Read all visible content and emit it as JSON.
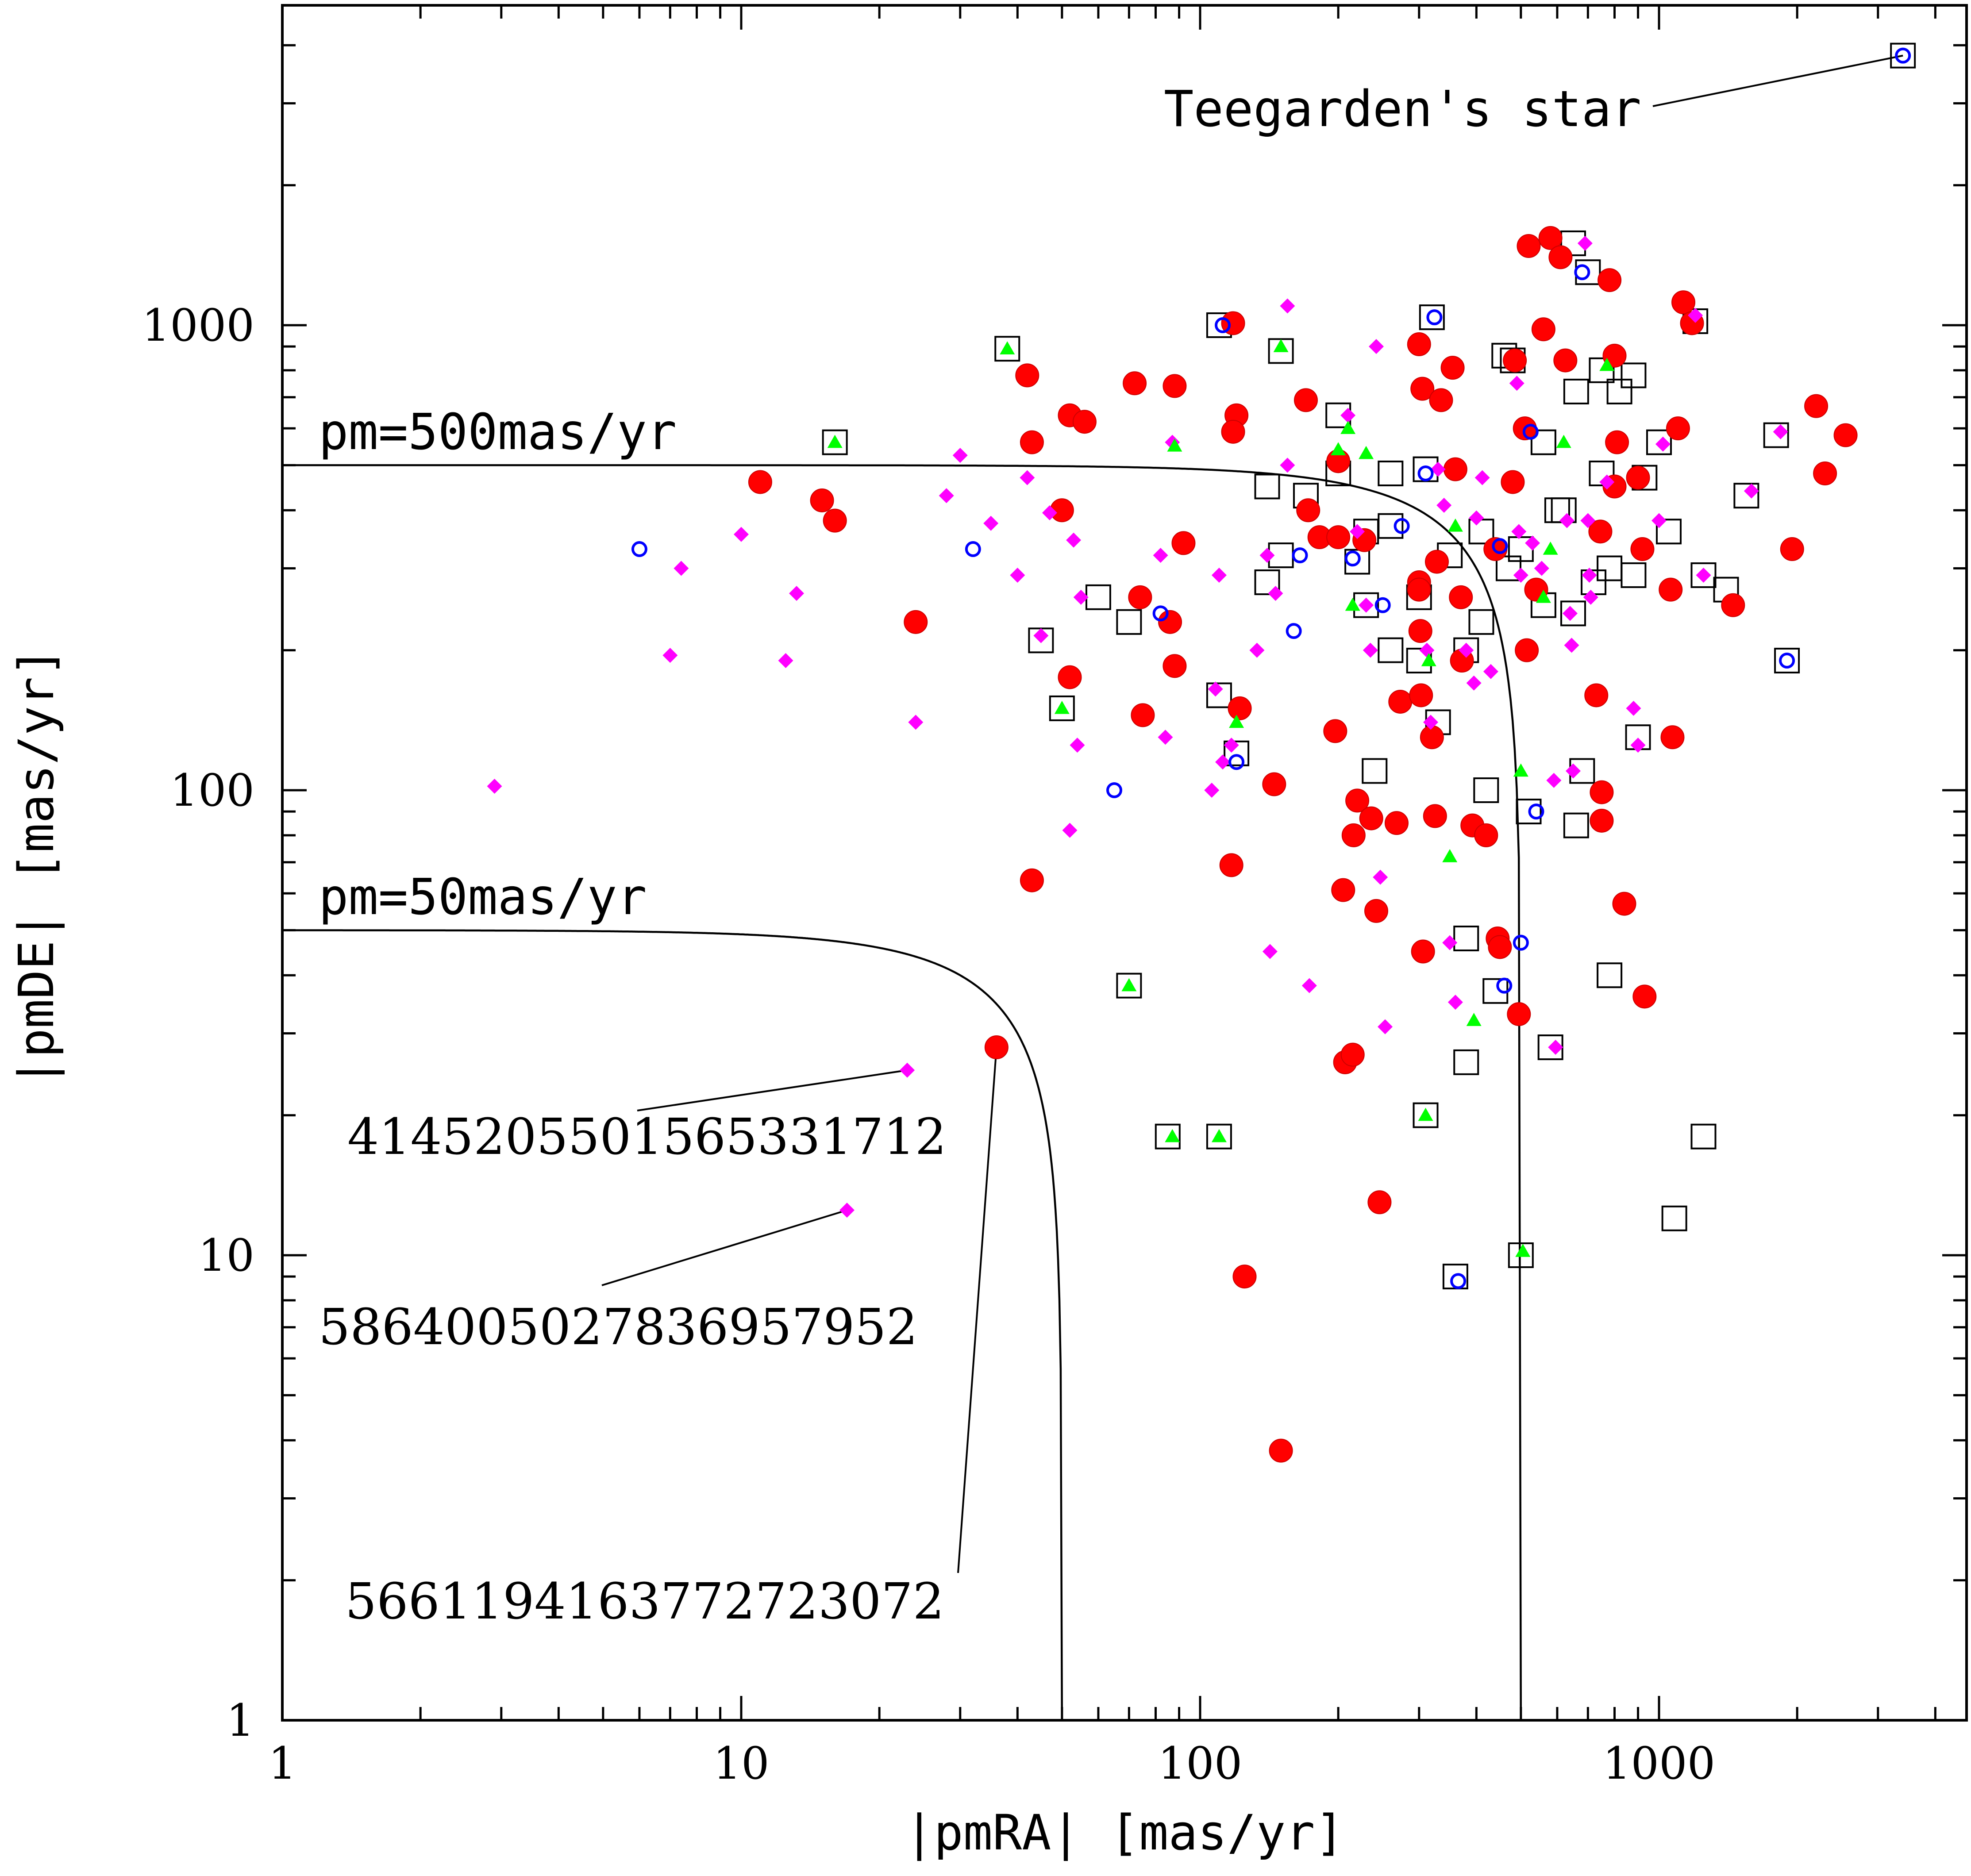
{
  "chart_data": {
    "type": "scatter",
    "title": "",
    "xlabel": "|pmRA| [mas/yr]",
    "ylabel": "|pmDE| [mas/yr]",
    "xscale": "log",
    "yscale": "log",
    "xlim": [
      1,
      4500
    ],
    "ylim": [
      1,
      4500
    ],
    "x_ticks": [
      {
        "value": 1,
        "label": "1"
      },
      {
        "value": 10,
        "label": "10"
      },
      {
        "value": 100,
        "label": "100"
      },
      {
        "value": 1000,
        "label": "1000"
      }
    ],
    "y_ticks": [
      {
        "value": 1,
        "label": "1"
      },
      {
        "value": 10,
        "label": "10"
      },
      {
        "value": 100,
        "label": "100"
      },
      {
        "value": 1000,
        "label": "1000"
      }
    ],
    "curves": [
      {
        "name": "pm500",
        "label": "pm=500mas/yr",
        "pm": 500
      },
      {
        "name": "pm50",
        "label": "pm=50mas/yr",
        "pm": 50
      }
    ],
    "annotations": [
      {
        "name": "teegarden",
        "text": "Teegarden's star",
        "target": [
          3400,
          3800
        ]
      },
      {
        "name": "gaia-4145",
        "text": "4145205501565331712",
        "target": [
          23,
          25
        ]
      },
      {
        "name": "gaia-5864",
        "text": "5864005027836957952",
        "target": [
          17,
          12.5
        ]
      },
      {
        "name": "gaia-5661",
        "text": "5661194163772723072",
        "target": [
          36,
          28
        ]
      }
    ],
    "series": [
      {
        "name": "squares",
        "marker": "open-square",
        "color": "#000000",
        "points": [
          [
            3400,
            3800
          ],
          [
            38,
            890
          ],
          [
            110,
            1000
          ],
          [
            320,
            1040
          ],
          [
            1200,
            1020
          ],
          [
            150,
            880
          ],
          [
            460,
            860
          ],
          [
            750,
            800
          ],
          [
            880,
            780
          ],
          [
            1550,
            430
          ],
          [
            1050,
            360
          ],
          [
            410,
            360
          ],
          [
            230,
            360
          ],
          [
            310,
            490
          ],
          [
            620,
            400
          ],
          [
            880,
            290
          ],
          [
            650,
            240
          ],
          [
            60,
            260
          ],
          [
            230,
            250
          ],
          [
            120,
            120
          ],
          [
            240,
            110
          ],
          [
            300,
            190
          ],
          [
            380,
            200
          ],
          [
            680,
            110
          ],
          [
            420,
            100
          ],
          [
            520,
            90
          ],
          [
            660,
            84
          ],
          [
            330,
            140
          ],
          [
            900,
            130
          ],
          [
            1250,
            18
          ],
          [
            380,
            26
          ],
          [
            1080,
            12
          ],
          [
            360,
            9
          ],
          [
            500,
            10
          ],
          [
            310,
            20
          ],
          [
            70,
            38
          ],
          [
            110,
            18
          ],
          [
            85,
            18
          ],
          [
            50,
            150
          ],
          [
            16,
            560
          ],
          [
            260,
            480
          ],
          [
            560,
            560
          ],
          [
            820,
            720
          ],
          [
            1800,
            580
          ],
          [
            200,
            640
          ],
          [
            110,
            160
          ],
          [
            170,
            430
          ],
          [
            650,
            1500
          ],
          [
            200,
            480
          ],
          [
            560,
            250
          ],
          [
            470,
            300
          ],
          [
            600,
            400
          ],
          [
            140,
            450
          ],
          [
            350,
            320
          ],
          [
            780,
            300
          ],
          [
            930,
            470
          ],
          [
            1000,
            560
          ],
          [
            260,
            370
          ],
          [
            700,
            1300
          ],
          [
            480,
            840
          ],
          [
            660,
            720
          ],
          [
            750,
            480
          ],
          [
            1250,
            290
          ],
          [
            1900,
            190
          ],
          [
            780,
            40
          ],
          [
            580,
            28
          ],
          [
            720,
            280
          ],
          [
            150,
            320
          ],
          [
            380,
            48
          ],
          [
            440,
            37
          ],
          [
            220,
            310
          ],
          [
            45,
            210
          ],
          [
            70,
            230
          ],
          [
            300,
            260
          ],
          [
            410,
            230
          ],
          [
            1400,
            270
          ],
          [
            140,
            280
          ],
          [
            260,
            200
          ],
          [
            500,
            330
          ]
        ]
      },
      {
        "name": "filled-red",
        "marker": "filled-circle",
        "color": "#ff0000",
        "points": [
          [
            11,
            460
          ],
          [
            15,
            420
          ],
          [
            16,
            380
          ],
          [
            24,
            230
          ],
          [
            36,
            28
          ],
          [
            42,
            780
          ],
          [
            43,
            560
          ],
          [
            43,
            64
          ],
          [
            52,
            640
          ],
          [
            56,
            620
          ],
          [
            50,
            400
          ],
          [
            52,
            175
          ],
          [
            72,
            750
          ],
          [
            74,
            260
          ],
          [
            75,
            145
          ],
          [
            88,
            740
          ],
          [
            86,
            230
          ],
          [
            88,
            185
          ],
          [
            92,
            340
          ],
          [
            118,
            1010
          ],
          [
            120,
            640
          ],
          [
            118,
            590
          ],
          [
            117,
            69
          ],
          [
            122,
            150
          ],
          [
            125,
            9
          ],
          [
            145,
            103
          ],
          [
            150,
            3.8
          ],
          [
            170,
            690
          ],
          [
            172,
            400
          ],
          [
            182,
            350
          ],
          [
            197,
            134
          ],
          [
            200,
            350
          ],
          [
            200,
            510
          ],
          [
            205,
            61
          ],
          [
            207,
            26
          ],
          [
            215,
            27
          ],
          [
            216,
            80
          ],
          [
            220,
            95
          ],
          [
            228,
            345
          ],
          [
            236,
            87
          ],
          [
            242,
            55
          ],
          [
            246,
            13
          ],
          [
            268,
            85
          ],
          [
            273,
            155
          ],
          [
            300,
            910
          ],
          [
            305,
            730
          ],
          [
            300,
            280
          ],
          [
            300,
            270
          ],
          [
            302,
            220
          ],
          [
            303,
            160
          ],
          [
            306,
            45
          ],
          [
            320,
            130
          ],
          [
            325,
            88
          ],
          [
            328,
            310
          ],
          [
            335,
            690
          ],
          [
            355,
            810
          ],
          [
            360,
            490
          ],
          [
            370,
            260
          ],
          [
            372,
            190
          ],
          [
            392,
            84
          ],
          [
            420,
            80
          ],
          [
            440,
            330
          ],
          [
            445,
            48
          ],
          [
            450,
            46
          ],
          [
            480,
            460
          ],
          [
            485,
            840
          ],
          [
            495,
            33
          ],
          [
            510,
            600
          ],
          [
            515,
            200
          ],
          [
            520,
            1480
          ],
          [
            540,
            270
          ],
          [
            560,
            980
          ],
          [
            580,
            1540
          ],
          [
            610,
            1400
          ],
          [
            625,
            840
          ],
          [
            730,
            160
          ],
          [
            745,
            360
          ],
          [
            750,
            99
          ],
          [
            750,
            86
          ],
          [
            780,
            1250
          ],
          [
            800,
            860
          ],
          [
            810,
            560
          ],
          [
            800,
            450
          ],
          [
            840,
            57
          ],
          [
            900,
            470
          ],
          [
            920,
            330
          ],
          [
            930,
            36
          ],
          [
            1060,
            270
          ],
          [
            1070,
            130
          ],
          [
            1100,
            600
          ],
          [
            1130,
            1120
          ],
          [
            1180,
            1010
          ],
          [
            1450,
            250
          ],
          [
            1950,
            330
          ],
          [
            2200,
            670
          ],
          [
            2300,
            480
          ],
          [
            2550,
            580
          ]
        ]
      },
      {
        "name": "magenta",
        "marker": "filled-diamond",
        "color": "#ff00ff",
        "points": [
          [
            2.9,
            102
          ],
          [
            7,
            195
          ],
          [
            7.4,
            300
          ],
          [
            10,
            355
          ],
          [
            12.5,
            190
          ],
          [
            13.2,
            265
          ],
          [
            17,
            12.5
          ],
          [
            23,
            25
          ],
          [
            24,
            140
          ],
          [
            28,
            430
          ],
          [
            30,
            525
          ],
          [
            35,
            375
          ],
          [
            40,
            290
          ],
          [
            42,
            470
          ],
          [
            45,
            215
          ],
          [
            47,
            395
          ],
          [
            52,
            82
          ],
          [
            53,
            345
          ],
          [
            54,
            125
          ],
          [
            55,
            260
          ],
          [
            82,
            320
          ],
          [
            84,
            130
          ],
          [
            87,
            560
          ],
          [
            106,
            100
          ],
          [
            108,
            165
          ],
          [
            110,
            290
          ],
          [
            112,
            115
          ],
          [
            117,
            125
          ],
          [
            133,
            200
          ],
          [
            140,
            320
          ],
          [
            142,
            45
          ],
          [
            146,
            265
          ],
          [
            155,
            1100
          ],
          [
            155,
            500
          ],
          [
            173,
            38
          ],
          [
            210,
            640
          ],
          [
            220,
            360
          ],
          [
            230,
            250
          ],
          [
            235,
            200
          ],
          [
            242,
            900
          ],
          [
            247,
            65
          ],
          [
            253,
            31
          ],
          [
            312,
            200
          ],
          [
            318,
            140
          ],
          [
            330,
            490
          ],
          [
            340,
            410
          ],
          [
            350,
            47
          ],
          [
            360,
            35
          ],
          [
            380,
            200
          ],
          [
            395,
            170
          ],
          [
            400,
            385
          ],
          [
            412,
            470
          ],
          [
            430,
            180
          ],
          [
            490,
            750
          ],
          [
            495,
            360
          ],
          [
            500,
            290
          ],
          [
            530,
            340
          ],
          [
            555,
            300
          ],
          [
            590,
            105
          ],
          [
            595,
            28
          ],
          [
            630,
            380
          ],
          [
            640,
            240
          ],
          [
            645,
            205
          ],
          [
            650,
            110
          ],
          [
            690,
            1500
          ],
          [
            700,
            380
          ],
          [
            705,
            290
          ],
          [
            710,
            260
          ],
          [
            770,
            460
          ],
          [
            880,
            150
          ],
          [
            900,
            125
          ],
          [
            1000,
            380
          ],
          [
            1020,
            555
          ],
          [
            1250,
            290
          ],
          [
            1840,
            590
          ],
          [
            1590,
            440
          ],
          [
            1200,
            1050
          ]
        ]
      },
      {
        "name": "blue",
        "marker": "open-circle",
        "color": "#0000ff",
        "points": [
          [
            3400,
            3800
          ],
          [
            6,
            330
          ],
          [
            32,
            330
          ],
          [
            65,
            100
          ],
          [
            82,
            240
          ],
          [
            112,
            1000
          ],
          [
            120,
            115
          ],
          [
            160,
            220
          ],
          [
            165,
            320
          ],
          [
            215,
            315
          ],
          [
            250,
            250
          ],
          [
            275,
            370
          ],
          [
            310,
            480
          ],
          [
            324,
            1040
          ],
          [
            365,
            8.8
          ],
          [
            450,
            335
          ],
          [
            460,
            38
          ],
          [
            500,
            47
          ],
          [
            525,
            590
          ],
          [
            540,
            90
          ],
          [
            680,
            1300
          ],
          [
            1900,
            190
          ]
        ]
      },
      {
        "name": "green",
        "marker": "filled-triangle",
        "color": "#00ff00",
        "points": [
          [
            16,
            560
          ],
          [
            38,
            890
          ],
          [
            50,
            150
          ],
          [
            70,
            38
          ],
          [
            87,
            18
          ],
          [
            88,
            550
          ],
          [
            110,
            18
          ],
          [
            120,
            140
          ],
          [
            150,
            900
          ],
          [
            200,
            540
          ],
          [
            210,
            600
          ],
          [
            215,
            250
          ],
          [
            230,
            530
          ],
          [
            310,
            20
          ],
          [
            315,
            190
          ],
          [
            350,
            72
          ],
          [
            360,
            370
          ],
          [
            395,
            32
          ],
          [
            505,
            10.2
          ],
          [
            500,
            110
          ],
          [
            560,
            260
          ],
          [
            580,
            330
          ],
          [
            620,
            560
          ],
          [
            770,
            820
          ]
        ]
      }
    ]
  }
}
